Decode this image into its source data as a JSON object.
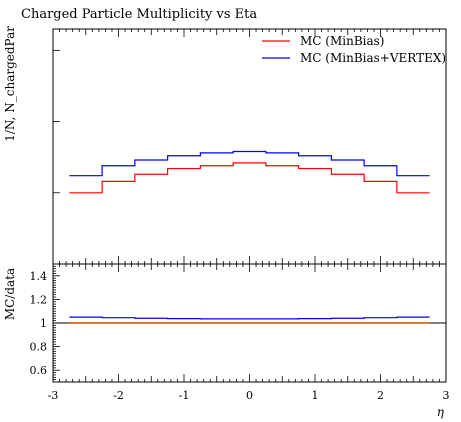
{
  "chart_data": [
    {
      "type": "line",
      "title": "Charged Particle Multiplicity vs Eta",
      "ylabel": "1/N, N_chargedPar",
      "xlabel": "",
      "xlim": [
        -3,
        3
      ],
      "y_ticks_labeled": false,
      "grid": false,
      "legend_position": "top-right",
      "x": [
        -2.5,
        -2.0,
        -1.5,
        -1.0,
        -0.5,
        0.0,
        0.5,
        1.0,
        1.5,
        2.0,
        2.5
      ],
      "series": [
        {
          "name": "MC (MinBias)",
          "color": "#ff0000",
          "values": [
            2.5,
            2.58,
            2.63,
            2.67,
            2.69,
            2.71,
            2.69,
            2.67,
            2.63,
            2.58,
            2.5
          ]
        },
        {
          "name": "MC (MinBias+VERTEX)",
          "color": "#0000ff",
          "values": [
            2.62,
            2.69,
            2.73,
            2.76,
            2.78,
            2.79,
            2.78,
            2.76,
            2.73,
            2.69,
            2.62
          ]
        }
      ]
    },
    {
      "type": "line",
      "title": "",
      "ylabel": "MC/data",
      "xlabel": "η",
      "xlim": [
        -3,
        3
      ],
      "ylim": [
        0.5,
        1.5
      ],
      "y_tick_labels": [
        "0.6",
        "0.8",
        "1",
        "1.2",
        "1.4"
      ],
      "x_tick_labels": [
        "-3",
        "-2",
        "-1",
        "0",
        "1",
        "2",
        "3"
      ],
      "grid": false,
      "reference_line": {
        "y": 1.0,
        "color": "#a8a000"
      },
      "x": [
        -2.5,
        -2.0,
        -1.5,
        -1.0,
        -0.5,
        0.0,
        0.5,
        1.0,
        1.5,
        2.0,
        2.5
      ],
      "series": [
        {
          "color": "#ff0000",
          "values": [
            1.0,
            1.0,
            1.0,
            1.0,
            1.0,
            1.0,
            1.0,
            1.0,
            1.0,
            1.0,
            1.0
          ]
        },
        {
          "color": "#0000ff",
          "values": [
            1.05,
            1.045,
            1.04,
            1.037,
            1.035,
            1.035,
            1.035,
            1.037,
            1.04,
            1.045,
            1.05
          ]
        }
      ]
    }
  ]
}
